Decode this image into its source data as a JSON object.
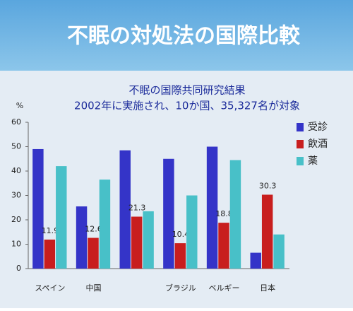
{
  "chart_data": {
    "type": "bar",
    "title": "不眠の対処法の国際比較",
    "subtitle": [
      "不眠の国際共同研究結果",
      "2002年に実施され、10か国、35,327名が対象"
    ],
    "y_label": "%",
    "categories": [
      "スペイン",
      "中国",
      null,
      "ブラジル",
      "ベルギー",
      "日本"
    ],
    "series": [
      {
        "name": "受診",
        "color": "#3434c8",
        "values": [
          49,
          25.5,
          48.5,
          45,
          50,
          6.5
        ]
      },
      {
        "name": "飲酒",
        "color": "#c81e1e",
        "values": [
          11.9,
          12.6,
          21.3,
          10.4,
          18.8,
          30.3
        ]
      },
      {
        "name": "薬",
        "color": "#48c0c8",
        "values": [
          42,
          36.5,
          23.5,
          30,
          44.5,
          14
        ]
      }
    ],
    "ylim": [
      0,
      60
    ],
    "yticks": [
      0,
      10,
      20,
      30,
      40,
      50,
      60
    ],
    "grid": false,
    "legend": "right"
  }
}
